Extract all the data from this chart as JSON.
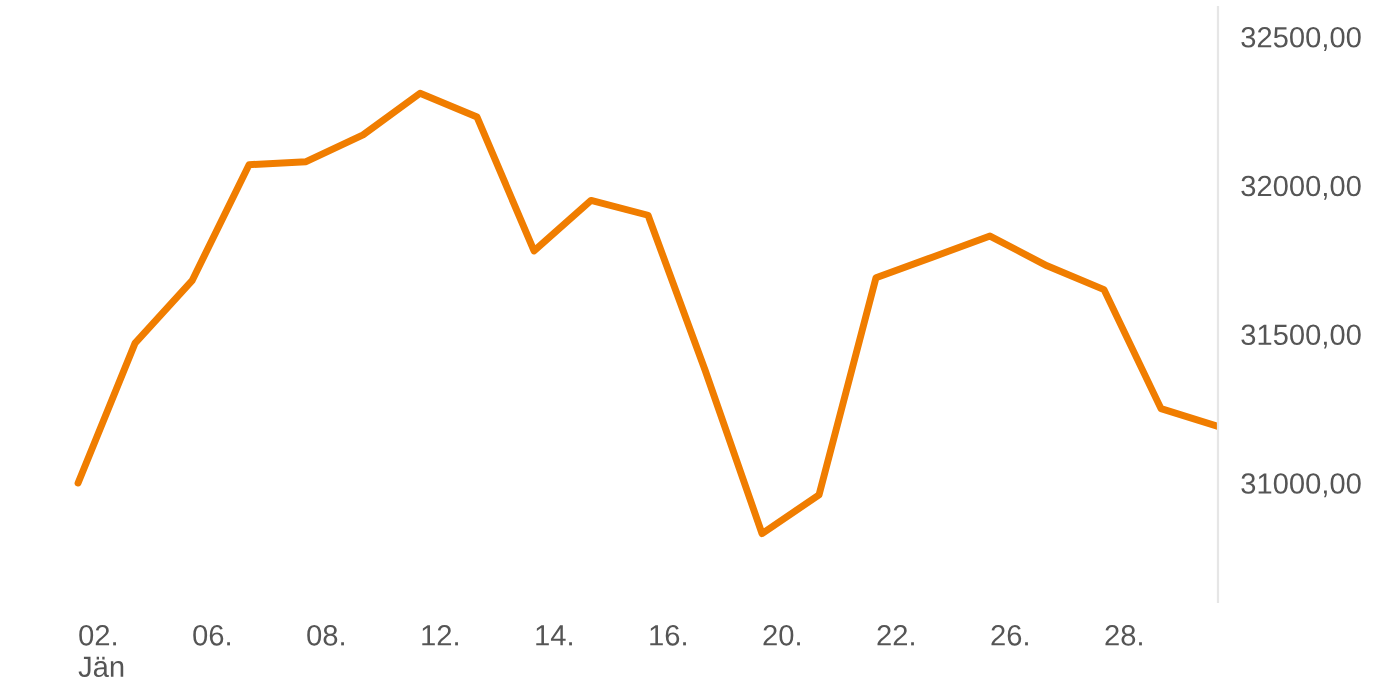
{
  "chart_data": {
    "type": "line",
    "categories": [
      "02.\nJän",
      null,
      "06.",
      null,
      "08.",
      null,
      "12.",
      null,
      "14.",
      null,
      "16.",
      null,
      "20.",
      null,
      "22.",
      null,
      "26.",
      null,
      "28.",
      null,
      null
    ],
    "series": [
      {
        "color": "#f07d00",
        "values": [
          31000,
          31470,
          31680,
          32070,
          32080,
          32170,
          32310,
          32230,
          31780,
          31950,
          31900,
          31380,
          30830,
          30960,
          31690,
          31760,
          31830,
          31730,
          31650,
          31250,
          31190
        ]
      }
    ],
    "ylim": [
      30600,
      32600
    ],
    "yticks": [
      {
        "value": 31000,
        "label": "31000,00"
      },
      {
        "value": 31500,
        "label": "31500,00"
      },
      {
        "value": 32000,
        "label": "32000,00"
      },
      {
        "value": 32500,
        "label": "32500,00"
      }
    ],
    "grid": false,
    "marker": "none",
    "line_style": "solid"
  }
}
